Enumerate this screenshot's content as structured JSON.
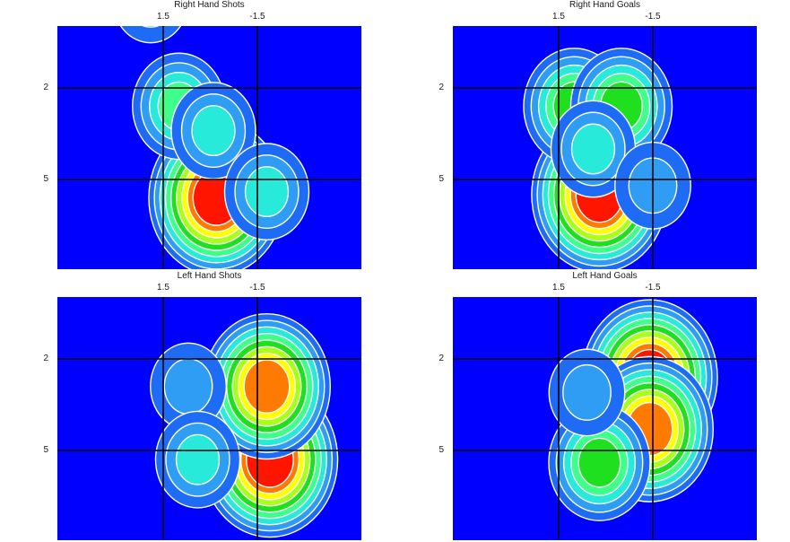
{
  "chart_data": [
    {
      "type": "heatmap",
      "title": "Right Hand Shots",
      "x_ticks": [
        "1.5",
        "-1.5"
      ],
      "y_ticks": [
        "2",
        "5"
      ],
      "colorscale": [
        "#0000ff",
        "#1e6cf5",
        "#2e9df3",
        "#27eadb",
        "#3dff8a",
        "#1fe01f",
        "#a8ff1a",
        "#ffff00",
        "#ff7a00",
        "#ff1500"
      ],
      "peaks": [
        {
          "x": -0.2,
          "y": 5.6,
          "level": 9
        },
        {
          "x": 1.0,
          "y": 2.6,
          "level": 4
        },
        {
          "x": -0.1,
          "y": 3.4,
          "level": 3
        },
        {
          "x": 1.9,
          "y": -0.9,
          "level": 2
        },
        {
          "x": -1.8,
          "y": 5.4,
          "level": 3
        }
      ]
    },
    {
      "type": "heatmap",
      "title": "Right Hand Goals",
      "x_ticks": [
        "1.5",
        "-1.5"
      ],
      "y_ticks": [
        "2",
        "5"
      ],
      "colorscale": [
        "#0000ff",
        "#1e6cf5",
        "#2e9df3",
        "#27eadb",
        "#3dff8a",
        "#1fe01f",
        "#a8ff1a",
        "#ffff00",
        "#ff7a00",
        "#ff1500"
      ],
      "peaks": [
        {
          "x": 0.2,
          "y": 5.5,
          "level": 9
        },
        {
          "x": 1.0,
          "y": 2.6,
          "level": 5
        },
        {
          "x": -0.5,
          "y": 2.6,
          "level": 5
        },
        {
          "x": 0.4,
          "y": 4.0,
          "level": 3
        },
        {
          "x": -1.5,
          "y": 5.2,
          "level": 2
        }
      ]
    },
    {
      "type": "heatmap",
      "title": "Left Hand Shots",
      "x_ticks": [
        "1.5",
        "-1.5"
      ],
      "y_ticks": [
        "2",
        "5"
      ],
      "colorscale": [
        "#0000ff",
        "#1e6cf5",
        "#2e9df3",
        "#27eadb",
        "#3dff8a",
        "#1fe01f",
        "#a8ff1a",
        "#ffff00",
        "#ff7a00",
        "#ff1500"
      ],
      "peaks": [
        {
          "x": -1.9,
          "y": 5.3,
          "level": 9
        },
        {
          "x": -1.8,
          "y": 2.9,
          "level": 8
        },
        {
          "x": 0.7,
          "y": 2.9,
          "level": 2
        },
        {
          "x": 0.4,
          "y": 5.3,
          "level": 3
        }
      ]
    },
    {
      "type": "heatmap",
      "title": "Left Hand Goals",
      "x_ticks": [
        "1.5",
        "-1.5"
      ],
      "y_ticks": [
        "2",
        "5"
      ],
      "colorscale": [
        "#0000ff",
        "#1e6cf5",
        "#2e9df3",
        "#27eadb",
        "#3dff8a",
        "#1fe01f",
        "#a8ff1a",
        "#ffff00",
        "#ff7a00",
        "#ff1500"
      ],
      "peaks": [
        {
          "x": -1.4,
          "y": 2.6,
          "level": 9
        },
        {
          "x": -1.4,
          "y": 4.3,
          "level": 8
        },
        {
          "x": 0.2,
          "y": 5.4,
          "level": 5
        },
        {
          "x": 0.6,
          "y": 3.1,
          "level": 2
        }
      ]
    }
  ]
}
